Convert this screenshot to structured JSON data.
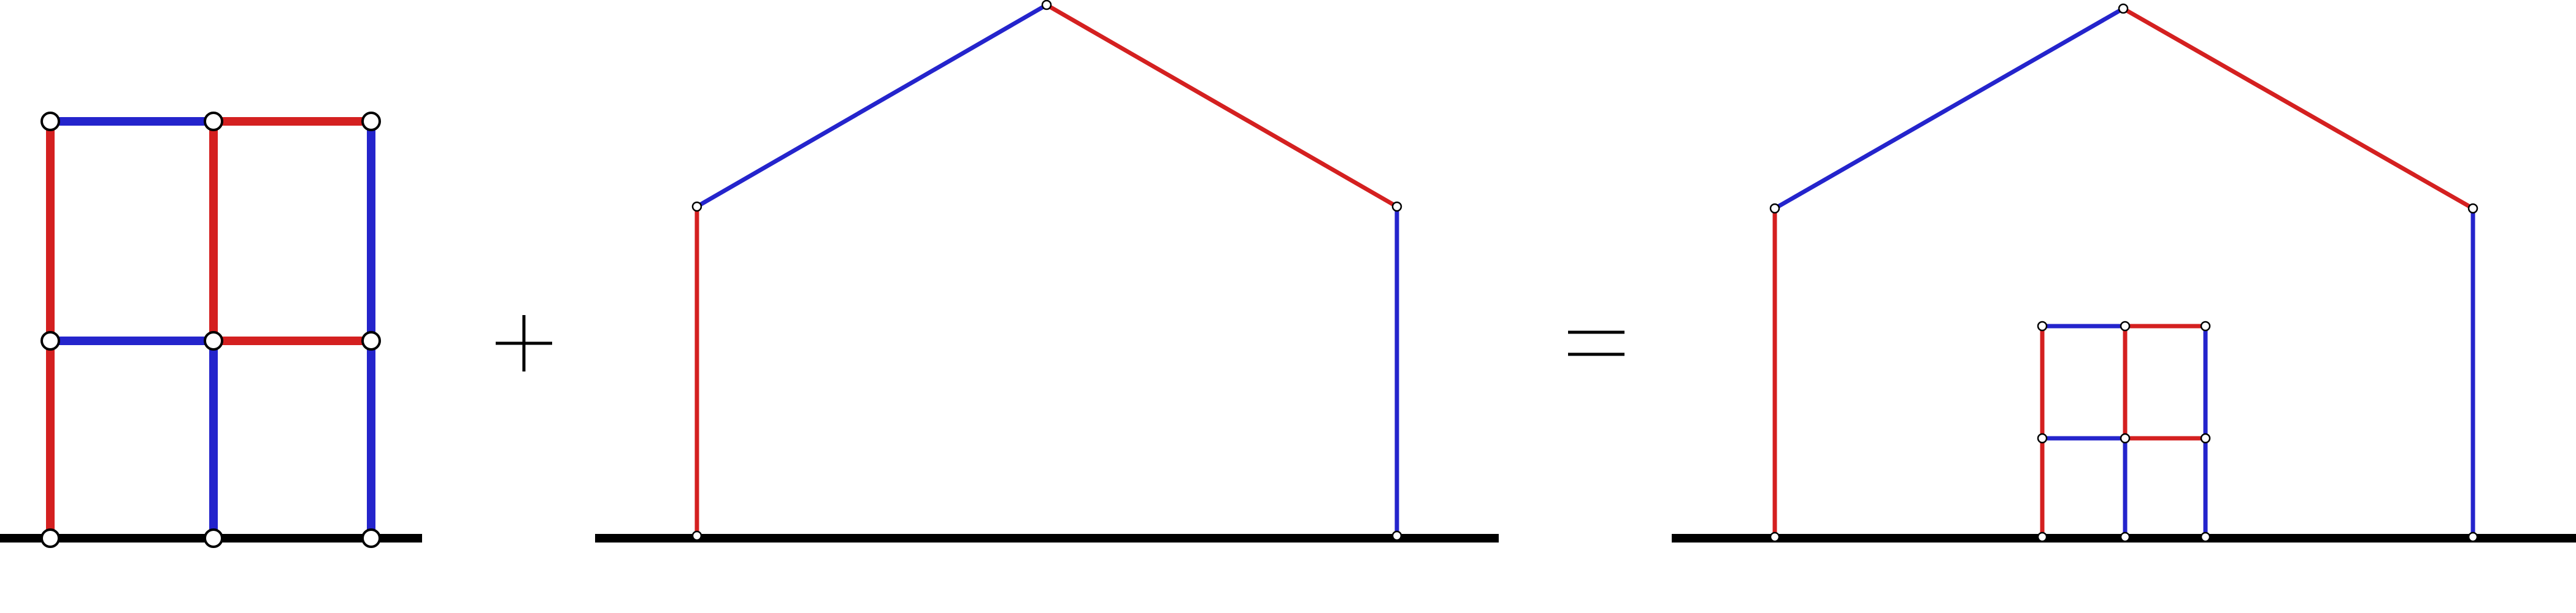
{
  "colors": {
    "red": "#d42020",
    "blue": "#2424cc",
    "ground": "#000000",
    "node_fill": "#ffffff",
    "node_stroke": "#000000"
  },
  "operators": {
    "plus": "+",
    "equals": "="
  },
  "figures": [
    {
      "name": "grid-frame",
      "members": [
        {
          "from": "A0",
          "to": "A1",
          "color": "red"
        },
        {
          "from": "A1",
          "to": "A2",
          "color": "red"
        },
        {
          "from": "B0",
          "to": "B1",
          "color": "blue"
        },
        {
          "from": "B1",
          "to": "B2",
          "color": "red"
        },
        {
          "from": "C0",
          "to": "C1",
          "color": "blue"
        },
        {
          "from": "C1",
          "to": "C2",
          "color": "blue"
        },
        {
          "from": "A1",
          "to": "B1",
          "color": "blue"
        },
        {
          "from": "B1",
          "to": "C1",
          "color": "red"
        },
        {
          "from": "A2",
          "to": "B2",
          "color": "blue"
        },
        {
          "from": "B2",
          "to": "C2",
          "color": "red"
        }
      ]
    },
    {
      "name": "house-frame",
      "members": [
        {
          "from": "L0",
          "to": "L1",
          "color": "red"
        },
        {
          "from": "L1",
          "to": "P",
          "color": "blue"
        },
        {
          "from": "P",
          "to": "R1",
          "color": "red"
        },
        {
          "from": "R1",
          "to": "R0",
          "color": "blue"
        }
      ]
    },
    {
      "name": "combined-frame",
      "members": [
        {
          "from": "L0",
          "to": "L1",
          "color": "red"
        },
        {
          "from": "L1",
          "to": "P",
          "color": "blue"
        },
        {
          "from": "P",
          "to": "R1",
          "color": "red"
        },
        {
          "from": "R1",
          "to": "R0",
          "color": "blue"
        },
        {
          "from": "A0",
          "to": "A1",
          "color": "red"
        },
        {
          "from": "A1",
          "to": "A2",
          "color": "red"
        },
        {
          "from": "B0",
          "to": "B1",
          "color": "blue"
        },
        {
          "from": "B1",
          "to": "B2",
          "color": "red"
        },
        {
          "from": "C0",
          "to": "C1",
          "color": "blue"
        },
        {
          "from": "C1",
          "to": "C2",
          "color": "blue"
        },
        {
          "from": "A1",
          "to": "B1",
          "color": "blue"
        },
        {
          "from": "B1",
          "to": "C1",
          "color": "red"
        },
        {
          "from": "A2",
          "to": "B2",
          "color": "blue"
        },
        {
          "from": "B2",
          "to": "C2",
          "color": "red"
        }
      ]
    }
  ]
}
